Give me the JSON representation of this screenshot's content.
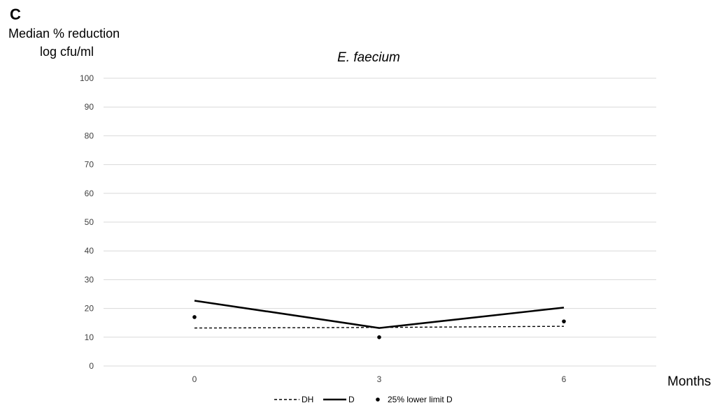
{
  "panel_label": "C",
  "chart_data": {
    "type": "line",
    "title": "E. faecium",
    "ylabel_lines": [
      "Median % reduction",
      "log cfu/ml"
    ],
    "xlabel": "Months",
    "x": [
      "0",
      "3",
      "6"
    ],
    "ylim": [
      0,
      100
    ],
    "yticks": [
      0,
      10,
      20,
      30,
      40,
      50,
      60,
      70,
      80,
      90,
      100
    ],
    "grid": true,
    "legend_position": "bottom",
    "series": [
      {
        "name": "DH",
        "style": "dashed",
        "color": "#000000",
        "values": [
          13.2,
          13.4,
          13.8
        ]
      },
      {
        "name": "D",
        "style": "solid",
        "color": "#000000",
        "values": [
          22.7,
          13.2,
          20.3
        ]
      },
      {
        "name": "25% lower limit D",
        "style": "dots",
        "color": "#000000",
        "values": [
          17.0,
          10.0,
          15.5
        ]
      }
    ]
  }
}
